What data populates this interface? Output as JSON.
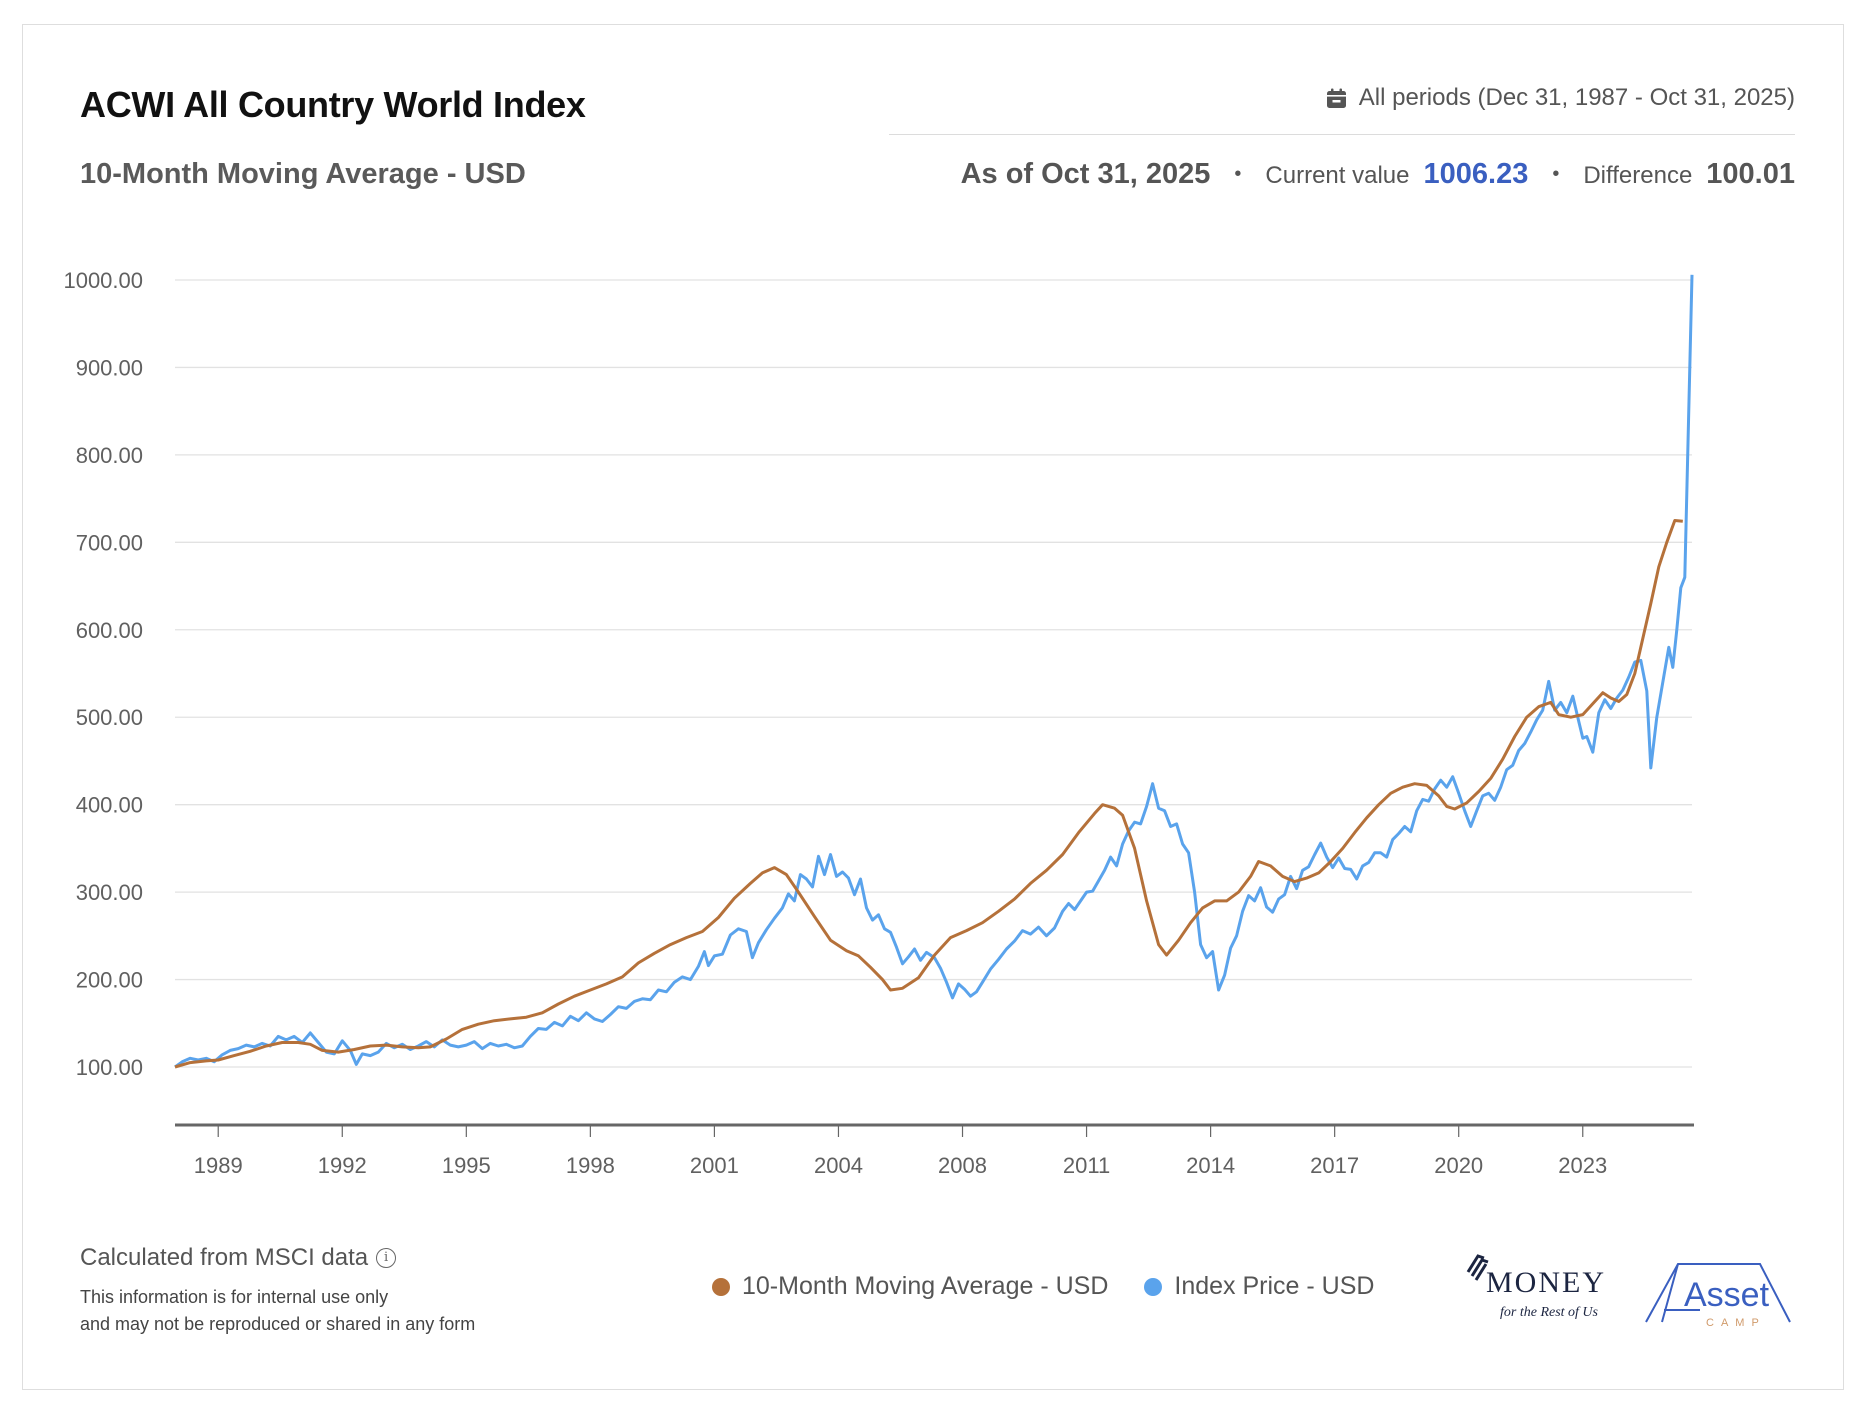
{
  "header": {
    "title": "ACWI All Country World Index",
    "subtitle": "10-Month Moving Average - USD",
    "period_icon": "calendar-icon",
    "period_label": "All periods (Dec 31, 1987 - Oct 31, 2025)",
    "as_of": "As of Oct 31, 2025",
    "separator": "•",
    "current_value_label": "Current value",
    "current_value": "1006.23",
    "difference_label": "Difference",
    "difference_value": "100.01"
  },
  "colors": {
    "moving_average": "#b5713a",
    "index_price": "#5aa3ec",
    "current_value": "#3a5fc0"
  },
  "footer": {
    "source_note": "Calculated from MSCI data",
    "info_icon": "info-icon",
    "disclaimer_line1": "This information is for internal use only",
    "disclaimer_line2": "and may not be reproduced or shared in any form",
    "logo_money_main": "MONEY",
    "logo_money_sub": "for the Rest of Us",
    "logo_asset_main": "Asset",
    "logo_asset_sub": "CAMP"
  },
  "chart_data": {
    "type": "line",
    "title": "ACWI All Country World Index",
    "subtitle": "10-Month Moving Average - USD",
    "xlabel": "",
    "ylabel": "",
    "xlim": [
      1987.92,
      2025.83
    ],
    "ylim": [
      35,
      1020
    ],
    "grid": true,
    "legend_position": "bottom-center",
    "yticks": [
      100,
      200,
      300,
      400,
      500,
      600,
      700,
      800,
      900,
      1000
    ],
    "ytick_labels": [
      "100.00",
      "200.00",
      "300.00",
      "400.00",
      "500.00",
      "600.00",
      "700.00",
      "800.00",
      "900.00",
      "1000.00"
    ],
    "xticks": [
      1989.0,
      1992.1,
      1995.2,
      1998.3,
      2001.4,
      2004.5,
      2007.6,
      2010.7,
      2013.8,
      2016.9,
      2020.0,
      2023.1
    ],
    "xtick_labels": [
      "1989",
      "1992",
      "1995",
      "1998",
      "2001",
      "2004",
      "2008",
      "2011",
      "2014",
      "2017",
      "2020",
      "2023"
    ],
    "series": [
      {
        "name": "10-Month Moving Average - USD",
        "color": "#b5713a",
        "points": [
          [
            1987.92,
            100
          ],
          [
            1988.3,
            105
          ],
          [
            1988.7,
            107
          ],
          [
            1989.0,
            108
          ],
          [
            1989.4,
            113
          ],
          [
            1989.8,
            118
          ],
          [
            1990.2,
            124
          ],
          [
            1990.6,
            128
          ],
          [
            1991.0,
            128
          ],
          [
            1991.3,
            126
          ],
          [
            1991.6,
            119
          ],
          [
            1992.0,
            117
          ],
          [
            1992.4,
            120
          ],
          [
            1992.8,
            124
          ],
          [
            1993.2,
            125
          ],
          [
            1993.6,
            123
          ],
          [
            1994.0,
            122
          ],
          [
            1994.3,
            123
          ],
          [
            1994.7,
            132
          ],
          [
            1995.1,
            143
          ],
          [
            1995.5,
            149
          ],
          [
            1995.9,
            153
          ],
          [
            1996.3,
            155
          ],
          [
            1996.7,
            157
          ],
          [
            1997.1,
            162
          ],
          [
            1997.5,
            172
          ],
          [
            1997.9,
            181
          ],
          [
            1998.3,
            188
          ],
          [
            1998.7,
            195
          ],
          [
            1999.1,
            203
          ],
          [
            1999.5,
            219
          ],
          [
            1999.9,
            230
          ],
          [
            2000.3,
            240
          ],
          [
            2000.7,
            248
          ],
          [
            2001.1,
            255
          ],
          [
            2001.5,
            271
          ],
          [
            2001.9,
            293
          ],
          [
            2002.3,
            310
          ],
          [
            2002.6,
            322
          ],
          [
            2002.9,
            328
          ],
          [
            2003.2,
            320
          ],
          [
            2003.5,
            300
          ],
          [
            2003.9,
            272
          ],
          [
            2004.3,
            245
          ],
          [
            2004.7,
            233
          ],
          [
            2005.0,
            227
          ],
          [
            2005.3,
            214
          ],
          [
            2005.6,
            200
          ],
          [
            2005.8,
            188
          ],
          [
            2006.1,
            190
          ],
          [
            2006.5,
            202
          ],
          [
            2006.9,
            228
          ],
          [
            2007.3,
            248
          ],
          [
            2007.7,
            256
          ],
          [
            2008.1,
            265
          ],
          [
            2008.5,
            278
          ],
          [
            2008.9,
            292
          ],
          [
            2009.3,
            310
          ],
          [
            2009.7,
            325
          ],
          [
            2010.1,
            343
          ],
          [
            2010.5,
            368
          ],
          [
            2010.9,
            390
          ],
          [
            2011.1,
            400
          ],
          [
            2011.4,
            396
          ],
          [
            2011.6,
            388
          ],
          [
            2011.9,
            350
          ],
          [
            2012.2,
            290
          ],
          [
            2012.5,
            240
          ],
          [
            2012.7,
            228
          ],
          [
            2013.0,
            245
          ],
          [
            2013.3,
            265
          ],
          [
            2013.6,
            282
          ],
          [
            2013.9,
            290
          ],
          [
            2014.2,
            290
          ],
          [
            2014.5,
            300
          ],
          [
            2014.8,
            318
          ],
          [
            2015.0,
            335
          ],
          [
            2015.3,
            330
          ],
          [
            2015.6,
            318
          ],
          [
            2015.9,
            312
          ],
          [
            2016.2,
            316
          ],
          [
            2016.5,
            322
          ],
          [
            2016.8,
            335
          ],
          [
            2017.1,
            350
          ],
          [
            2017.4,
            368
          ],
          [
            2017.7,
            385
          ],
          [
            2018.0,
            400
          ],
          [
            2018.3,
            413
          ],
          [
            2018.6,
            420
          ],
          [
            2018.9,
            424
          ],
          [
            2019.2,
            422
          ],
          [
            2019.5,
            410
          ],
          [
            2019.7,
            398
          ],
          [
            2019.9,
            395
          ],
          [
            2020.2,
            402
          ],
          [
            2020.5,
            415
          ],
          [
            2020.8,
            430
          ],
          [
            2021.1,
            452
          ],
          [
            2021.4,
            478
          ],
          [
            2021.7,
            500
          ],
          [
            2022.0,
            512
          ],
          [
            2022.3,
            517
          ],
          [
            2022.5,
            503
          ],
          [
            2022.8,
            500
          ],
          [
            2023.1,
            503
          ],
          [
            2023.3,
            513
          ],
          [
            2023.6,
            528
          ],
          [
            2023.8,
            522
          ],
          [
            2024.0,
            518
          ],
          [
            2024.2,
            526
          ],
          [
            2024.4,
            550
          ],
          [
            2024.6,
            590
          ],
          [
            2024.8,
            630
          ],
          [
            2025.0,
            672
          ],
          [
            2025.2,
            700
          ],
          [
            2025.4,
            725
          ],
          [
            2025.6,
            724
          ]
        ]
      },
      {
        "name": "Index Price - USD",
        "color": "#5aa3ec",
        "points": []
      }
    ]
  }
}
